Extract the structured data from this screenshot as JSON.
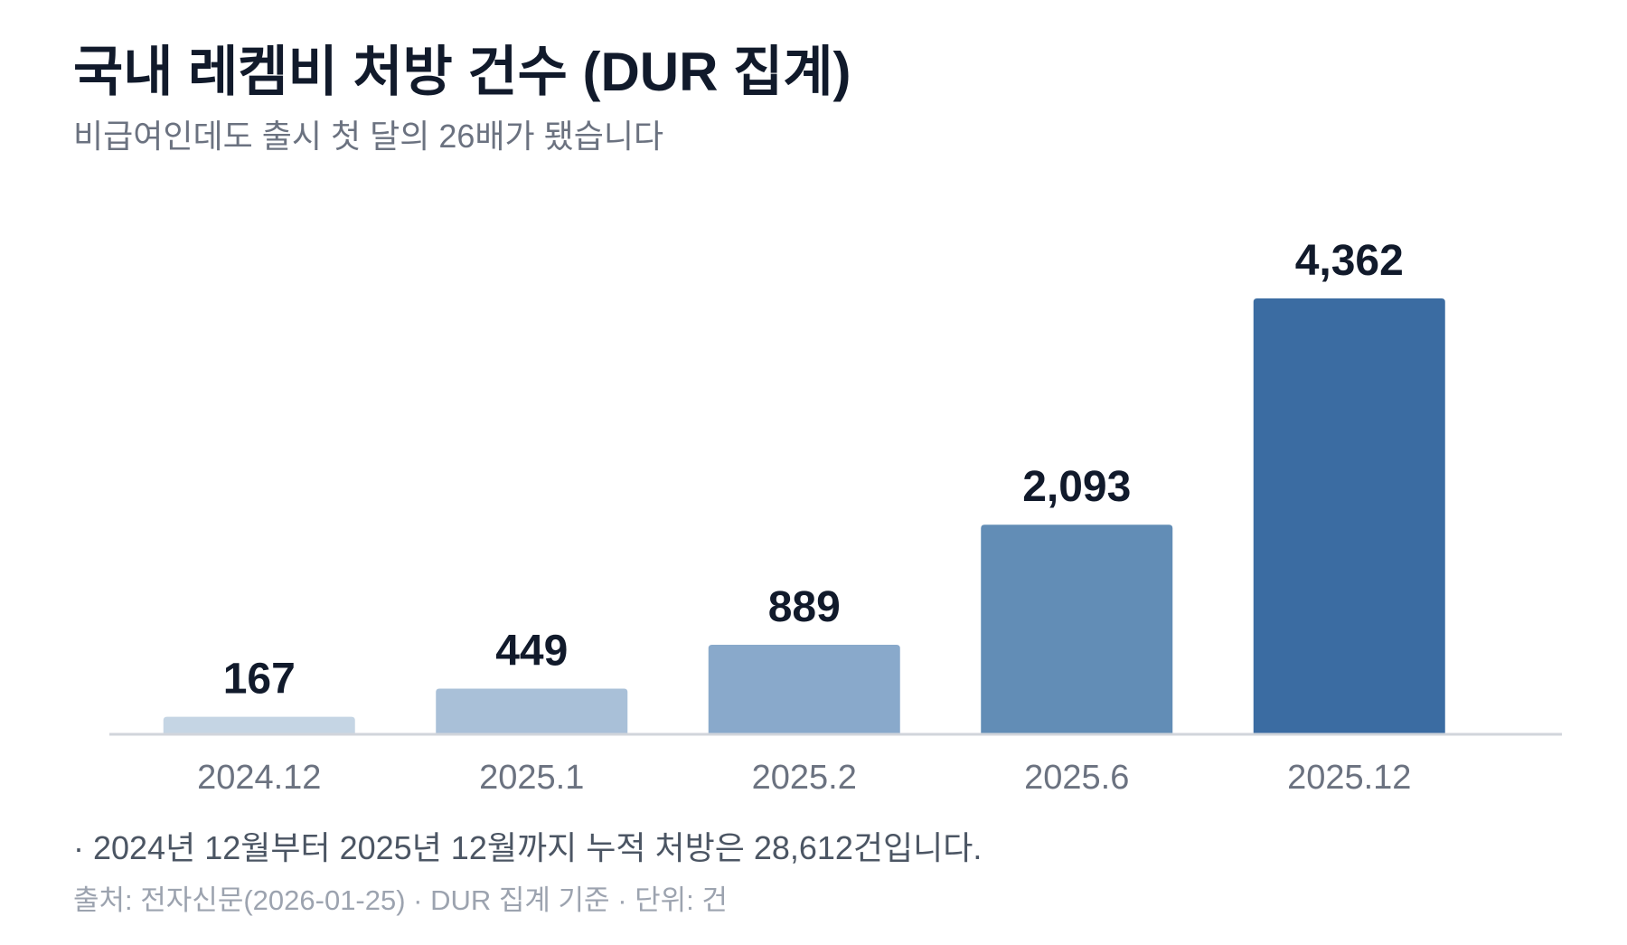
{
  "chart_data": {
    "type": "bar",
    "title": "국내 레켐비 처방 건수 (DUR 집계)",
    "subtitle": "비급여인데도 출시 첫 달의 26배가 됐습니다",
    "categories": [
      "2024.12",
      "2025.1",
      "2025.2",
      "2025.6",
      "2025.12"
    ],
    "values": [
      167,
      449,
      889,
      2093,
      4362
    ],
    "value_labels": [
      "167",
      "449",
      "889",
      "2,093",
      "4,362"
    ],
    "colors": [
      "#c5d5e4",
      "#a9c0d8",
      "#89a9cb",
      "#628db6",
      "#3b6ca2"
    ],
    "note": "· 2024년 12월부터 2025년 12월까지 누적 처방은 28,612건입니다.",
    "source": "출처: 전자신문(2026-01-25) · DUR 집계 기준 · 단위: 건"
  }
}
